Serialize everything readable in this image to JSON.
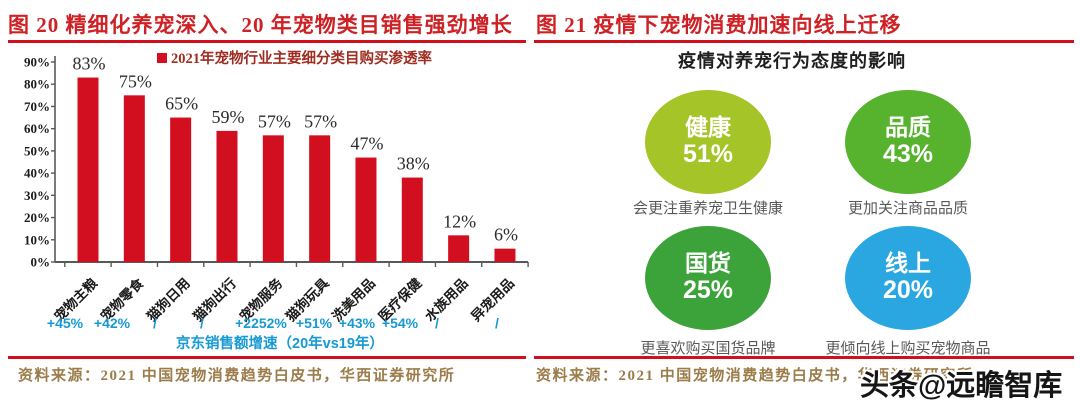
{
  "left_panel": {
    "figure_title": "图 20 精细化养宠深入、20 年宠物类目销售强劲增长",
    "source": "资料来源：2021 中国宠物消费趋势白皮书，华西证券研究所"
  },
  "right_panel": {
    "figure_title": "图 21 疫情下宠物消费加速向线上迁移",
    "subtitle": "疫情对养宠行为态度的影响",
    "bubbles": [
      {
        "label": "健康",
        "value": "51%",
        "caption": "会更注重养宠卫生健康",
        "color": "#a4c427"
      },
      {
        "label": "品质",
        "value": "43%",
        "caption": "更加关注商品品质",
        "color": "#57b22e"
      },
      {
        "label": "国货",
        "value": "25%",
        "caption": "更喜欢购买国货品牌",
        "color": "#3ca33a"
      },
      {
        "label": "线上",
        "value": "20%",
        "caption": "更倾向线上购买宠物商品",
        "color": "#2aa7e0"
      }
    ],
    "source": "资料来源：2021 中国宠物消费趋势白皮书，华西证券研究所"
  },
  "watermark": "头条@远瞻智库",
  "chart_data": [
    {
      "type": "bar",
      "title": "2021年宠物行业主要细分类目购买渗透率",
      "legend_label": "2021年宠物行业主要细分类目购买渗透率",
      "legend_position": "top",
      "categories": [
        "宠物主粮",
        "宠物零食",
        "猫狗日用",
        "猫狗出行",
        "宠物服务",
        "猫狗玩具",
        "洗美用品",
        "医疗保健",
        "水族用品",
        "异宠用品"
      ],
      "values": [
        83,
        75,
        65,
        59,
        57,
        57,
        47,
        38,
        12,
        6
      ],
      "value_labels": [
        "83%",
        "75%",
        "65%",
        "59%",
        "57%",
        "57%",
        "47%",
        "38%",
        "12%",
        "6%"
      ],
      "growth_row": [
        "+45%",
        "+42%",
        "/",
        "/",
        "+2252%",
        "+51%",
        "+43%",
        "+54%",
        "/",
        "/"
      ],
      "growth_caption": "京东销售额增速（20年vs19年）",
      "xlabel": "",
      "ylabel": "",
      "ylim": [
        0,
        90
      ],
      "ytick_step": 10,
      "ytick_labels": [
        "0%",
        "10%",
        "20%",
        "30%",
        "40%",
        "50%",
        "60%",
        "70%",
        "80%",
        "90%"
      ],
      "grid": false,
      "bar_color": "#d20f1e",
      "growth_color": "#1799d4",
      "axis_color": "#595959",
      "legend_text_color": "#9f2c20"
    },
    {
      "type": "bubble",
      "title": "疫情对养宠行为态度的影响",
      "categories": [
        "健康",
        "品质",
        "国货",
        "线上"
      ],
      "values": [
        51,
        43,
        25,
        20
      ],
      "annotations": [
        "会更注重养宠卫生健康",
        "更加关注商品品质",
        "更喜欢购买国货品牌",
        "更倾向线上购买宠物商品"
      ],
      "colors": [
        "#a4c427",
        "#57b22e",
        "#3ca33a",
        "#2aa7e0"
      ]
    }
  ]
}
